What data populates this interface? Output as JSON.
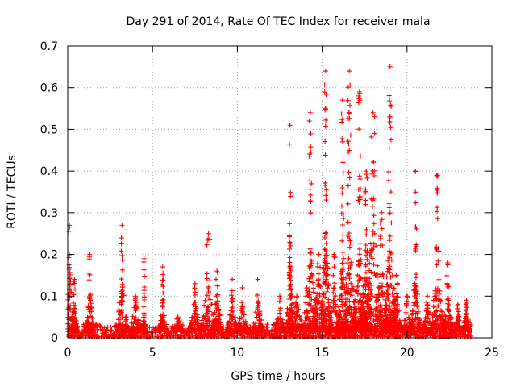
{
  "chart_data": {
    "type": "scatter",
    "title": "Day 291 of 2014, Rate Of TEC Index for receiver mala",
    "xlabel": "GPS time / hours",
    "ylabel": "ROTI / TECUs",
    "xlim": [
      0,
      25
    ],
    "ylim": [
      0,
      0.7
    ],
    "xticks": [
      0,
      5,
      10,
      15,
      20,
      25
    ],
    "xtick_labels": [
      "0",
      "5",
      "10",
      "15",
      "20",
      "25"
    ],
    "yticks": [
      0,
      0.1,
      0.2,
      0.3,
      0.4,
      0.5,
      0.6,
      0.7
    ],
    "ytick_labels": [
      "0",
      "0.1",
      "0.2",
      "0.3",
      "0.4",
      "0.5",
      "0.6",
      "0.7"
    ],
    "grid": true,
    "marker": "+",
    "color": "#ff0000",
    "baseline": {
      "x_start": 0,
      "x_end": 23.8,
      "typical_range": [
        0.0,
        0.03
      ]
    },
    "bursts": [
      {
        "center": 0.1,
        "width": 0.12,
        "peak": 0.27,
        "height": 0.18
      },
      {
        "center": 0.4,
        "width": 0.1,
        "peak": 0.14,
        "height": 0.1
      },
      {
        "center": 1.3,
        "width": 0.1,
        "peak": 0.2,
        "height": 0.11
      },
      {
        "center": 3.2,
        "width": 0.15,
        "peak": 0.27,
        "height": 0.14
      },
      {
        "center": 4.0,
        "width": 0.15,
        "peak": 0.1,
        "height": 0.08
      },
      {
        "center": 4.5,
        "width": 0.05,
        "peak": 0.19,
        "height": 0.05
      },
      {
        "center": 5.6,
        "width": 0.1,
        "peak": 0.17,
        "height": 0.08
      },
      {
        "center": 6.5,
        "width": 0.15,
        "peak": 0.05,
        "height": 0.04
      },
      {
        "center": 7.5,
        "width": 0.15,
        "peak": 0.13,
        "height": 0.08
      },
      {
        "center": 8.3,
        "width": 0.25,
        "peak": 0.25,
        "height": 0.12
      },
      {
        "center": 8.8,
        "width": 0.15,
        "peak": 0.16,
        "height": 0.1
      },
      {
        "center": 9.7,
        "width": 0.15,
        "peak": 0.14,
        "height": 0.08
      },
      {
        "center": 10.3,
        "width": 0.15,
        "peak": 0.12,
        "height": 0.07
      },
      {
        "center": 11.2,
        "width": 0.15,
        "peak": 0.14,
        "height": 0.08
      },
      {
        "center": 12.5,
        "width": 0.15,
        "peak": 0.1,
        "height": 0.06
      },
      {
        "center": 13.1,
        "width": 0.1,
        "peak": 0.51,
        "height": 0.18
      },
      {
        "center": 13.5,
        "width": 0.2,
        "peak": 0.1,
        "height": 0.08
      },
      {
        "center": 14.3,
        "width": 0.2,
        "peak": 0.54,
        "height": 0.22
      },
      {
        "center": 14.8,
        "width": 0.2,
        "peak": 0.2,
        "height": 0.14
      },
      {
        "center": 15.2,
        "width": 0.15,
        "peak": 0.64,
        "height": 0.25
      },
      {
        "center": 15.7,
        "width": 0.15,
        "peak": 0.2,
        "height": 0.12
      },
      {
        "center": 16.2,
        "width": 0.15,
        "peak": 0.57,
        "height": 0.2
      },
      {
        "center": 16.6,
        "width": 0.2,
        "peak": 0.64,
        "height": 0.25
      },
      {
        "center": 17.2,
        "width": 0.2,
        "peak": 0.59,
        "height": 0.24
      },
      {
        "center": 17.6,
        "width": 0.15,
        "peak": 0.4,
        "height": 0.2
      },
      {
        "center": 18.0,
        "width": 0.25,
        "peak": 0.54,
        "height": 0.3
      },
      {
        "center": 18.5,
        "width": 0.2,
        "peak": 0.3,
        "height": 0.18
      },
      {
        "center": 19.0,
        "width": 0.2,
        "peak": 0.65,
        "height": 0.24
      },
      {
        "center": 19.4,
        "width": 0.15,
        "peak": 0.15,
        "height": 0.1
      },
      {
        "center": 20.0,
        "width": 0.15,
        "peak": 0.1,
        "height": 0.06
      },
      {
        "center": 20.5,
        "width": 0.15,
        "peak": 0.4,
        "height": 0.16
      },
      {
        "center": 21.2,
        "width": 0.15,
        "peak": 0.1,
        "height": 0.07
      },
      {
        "center": 21.8,
        "width": 0.2,
        "peak": 0.39,
        "height": 0.16
      },
      {
        "center": 22.4,
        "width": 0.15,
        "peak": 0.18,
        "height": 0.1
      },
      {
        "center": 23.0,
        "width": 0.1,
        "peak": 0.08,
        "height": 0.05
      },
      {
        "center": 23.5,
        "width": 0.1,
        "peak": 0.09,
        "height": 0.06
      }
    ]
  }
}
